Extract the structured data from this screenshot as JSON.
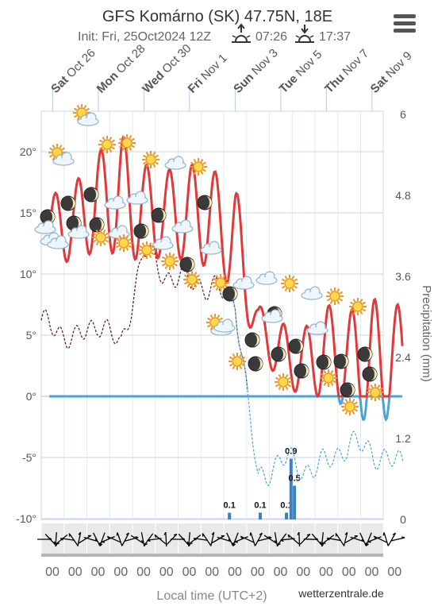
{
  "header": {
    "title": "GFS Komárno (SK) 47.75N, 18E",
    "init": "Init: Fri, 25Oct2024 12Z",
    "sunrise": "07:26",
    "sunset": "17:37"
  },
  "chart_data": {
    "type": "line",
    "title": "GFS Komárno (SK) 47.75N, 18E",
    "date_labels": [
      {
        "day": "Sat",
        "date": "Oct 26"
      },
      {
        "day": "Mon",
        "date": "Oct 28"
      },
      {
        "day": "Wed",
        "date": "Oct 30"
      },
      {
        "day": "Fri",
        "date": "Nov 1"
      },
      {
        "day": "Sun",
        "date": "Nov 3"
      },
      {
        "day": "Tue",
        "date": "Nov 5"
      },
      {
        "day": "Thu",
        "date": "Nov 7"
      },
      {
        "day": "Sat",
        "date": "Nov 9"
      }
    ],
    "left_axis": {
      "ticks": [
        "20°",
        "15°",
        "10°",
        "5°",
        "0°",
        "-5°",
        "-10°"
      ],
      "values": [
        20,
        15,
        10,
        5,
        0,
        -5,
        -10
      ],
      "ylim": [
        -10,
        23
      ]
    },
    "right_axis": {
      "label": "Precipitation (mm)",
      "ticks": [
        "6",
        "4.8",
        "3.6",
        "2.4",
        "1.2",
        "0"
      ],
      "values": [
        6,
        4.8,
        3.6,
        2.4,
        1.2,
        0
      ]
    },
    "xlabel": "Local time (UTC+2)",
    "hour_labels": [
      "00",
      "00",
      "00",
      "00",
      "00",
      "00",
      "00",
      "00",
      "00",
      "00",
      "00",
      "00",
      "00",
      "00",
      "00",
      "00"
    ],
    "x_days": [
      0.5,
      1.5,
      2.5,
      3.5,
      4.5,
      5.5,
      6.5,
      7.5,
      8.5,
      9.5,
      10.5,
      11.5,
      12.5,
      13.5,
      14.5,
      15.5
    ],
    "temp_max": [
      16.5,
      17.5,
      20,
      21.5,
      19,
      18.5,
      19,
      18.5,
      17.5,
      7.5,
      6,
      5.5,
      7.5,
      7,
      8,
      7.5
    ],
    "temp_min": [
      11,
      11,
      12,
      11.5,
      11,
      11.5,
      11,
      10.5,
      8.5,
      4,
      1,
      0,
      0,
      -1,
      -2.5,
      -1.5
    ],
    "dewpoint": [
      5.8,
      4.5,
      6.2,
      4,
      12,
      9.8,
      9.5,
      8.8,
      8,
      -7,
      -5,
      -6,
      -5.5,
      -3.8,
      -4.5,
      -5.5
    ],
    "precip": [
      {
        "day": 8.25,
        "value": 0.1,
        "label": "0.1"
      },
      {
        "day": 9.6,
        "value": 0.1,
        "label": "0.1"
      },
      {
        "day": 10.75,
        "value": 0.1,
        "label": "0.1"
      },
      {
        "day": 10.95,
        "value": 0.9,
        "label": "0.9"
      },
      {
        "day": 11.1,
        "value": 0.5,
        "label": "0.5"
      }
    ],
    "colors": {
      "temperature": "#e0383b",
      "below_zero": "#4ba3d8",
      "dewpoint": "#5a1414",
      "precip": "#3b82c4",
      "grid": "#c8d6e5"
    },
    "grid": true,
    "credit": "wetterzentrale.de"
  }
}
